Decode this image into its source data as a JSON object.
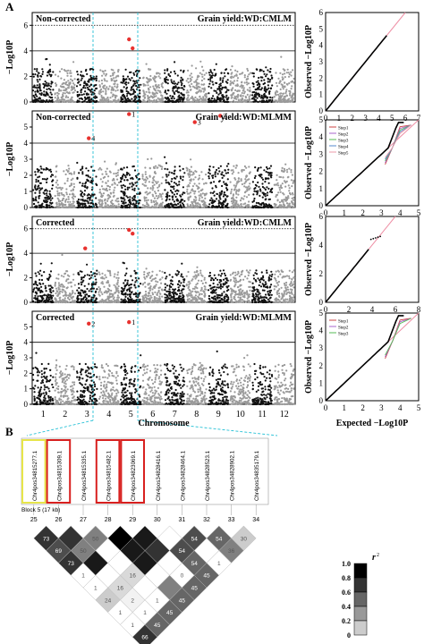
{
  "figure": {
    "panel_a": "A",
    "panel_b": "B"
  },
  "manhattan": {
    "ylabel": "−Log10P",
    "xlabel": "Chromosome",
    "chromosomes": [
      "1",
      "2",
      "3",
      "4",
      "5",
      "6",
      "7",
      "8",
      "9",
      "10",
      "11",
      "12"
    ],
    "panels": [
      {
        "label": "Non-corrected",
        "title": "Grain yield:WD:CMLM",
        "yticks": [
          0,
          2,
          4,
          6
        ],
        "threshold_dotted": 6,
        "threshold_solid": 4,
        "hits": [
          {
            "chr": "5",
            "y": 4.9,
            "label": ""
          },
          {
            "chr": "5",
            "y": 4.2,
            "label": ""
          }
        ]
      },
      {
        "label": "Non-corrected",
        "title": "Grain yield:WD:MLMM",
        "yticks": [
          0,
          1,
          2,
          3,
          4,
          5
        ],
        "threshold_dotted": 6,
        "threshold_solid": 4,
        "hits": [
          {
            "chr": "5",
            "y": 5.8,
            "label": "1"
          },
          {
            "chr": "9",
            "y": 5.7,
            "label": "2"
          },
          {
            "chr": "8",
            "y": 5.3,
            "label": "3"
          },
          {
            "chr": "3",
            "y": 4.3,
            "label": "4"
          }
        ]
      },
      {
        "label": "Corrected",
        "title": "Grain yield:WD:CMLM",
        "yticks": [
          0,
          2,
          4,
          6
        ],
        "threshold_dotted": 6,
        "threshold_solid": 4,
        "hits": [
          {
            "chr": "5",
            "y": 5.9,
            "label": ""
          },
          {
            "chr": "5",
            "y": 5.6,
            "label": ""
          },
          {
            "chr": "3",
            "y": 4.4,
            "label": ""
          }
        ]
      },
      {
        "label": "Corrected",
        "title": "Grain yield:WD:MLMM",
        "yticks": [
          0,
          1,
          2,
          3,
          4,
          5
        ],
        "threshold_dotted": 6,
        "threshold_solid": 4,
        "hits": [
          {
            "chr": "5",
            "y": 5.3,
            "label": "1"
          },
          {
            "chr": "3",
            "y": 5.2,
            "label": "2"
          }
        ]
      }
    ]
  },
  "qq": {
    "ylabel": "Observed −Log10P",
    "xlabel": "Expected −Log10P",
    "panels": [
      {
        "xticks": [
          0,
          1,
          2,
          3,
          4,
          5,
          6,
          7
        ],
        "yticks": [
          0,
          1,
          2,
          3,
          4,
          5,
          6
        ],
        "legend": []
      },
      {
        "xticks": [
          0,
          1,
          2,
          3,
          4,
          5
        ],
        "yticks": [
          0,
          1,
          2,
          3,
          4,
          5
        ],
        "legend": [
          "Step1",
          "Step2",
          "Step3",
          "Step4",
          "Step5"
        ]
      },
      {
        "xticks": [
          0,
          2,
          4,
          6,
          8
        ],
        "yticks": [
          0,
          2,
          4,
          6
        ],
        "legend": []
      },
      {
        "xticks": [
          0,
          1,
          2,
          3,
          4,
          5
        ],
        "yticks": [
          0,
          1,
          2,
          3,
          4,
          5
        ],
        "legend": [
          "Step1",
          "Step2",
          "Step3"
        ]
      }
    ]
  },
  "ld": {
    "block_label": "Block 5 (17 kb)",
    "snps": [
      "Chr4pos34815277.1",
      "Chr4pos34815309.1",
      "Chr4pos34815335.1",
      "Chr4pos34815482.1",
      "Chr4pos34823069.1",
      "Chr4pos34828416.1",
      "Chr4pos34828464.1",
      "Chr4pos34828523.1",
      "Chr4pos34828902.1",
      "Chr4pos34835179.1"
    ],
    "positions": [
      "25",
      "26",
      "27",
      "28",
      "29",
      "30",
      "31",
      "32",
      "33",
      "34"
    ],
    "highlight_yellow": [
      0
    ],
    "highlight_red": [
      1,
      3,
      4
    ],
    "legend_title": "r2",
    "legend_ticks": [
      "1.0",
      "0.8",
      "0.6",
      "0.4",
      "0.2",
      "0"
    ],
    "cells": [
      [
        "73",
        "",
        "50",
        "",
        "",
        "",
        "54",
        "54",
        "30"
      ],
      [
        "69",
        "50",
        "",
        "",
        "",
        "54",
        "",
        "36"
      ],
      [
        "73",
        "",
        "",
        "",
        "",
        "54",
        "1"
      ],
      [
        "1",
        "",
        "16",
        "",
        "0",
        "45"
      ],
      [
        "1",
        "16",
        "",
        "",
        "45"
      ],
      [
        "24",
        "2",
        "1",
        "45"
      ],
      [
        "1",
        "1",
        "45"
      ],
      [
        "1",
        "45"
      ],
      [
        "66"
      ]
    ],
    "shades": [
      [
        0.8,
        0.8,
        0.5,
        1,
        0.9,
        0,
        0.7,
        0.6,
        0.2
      ],
      [
        0.7,
        0.5,
        0,
        0.9,
        0.8,
        0.7,
        0,
        0.5
      ],
      [
        0.8,
        0.9,
        0,
        0.9,
        0,
        0.6,
        0
      ],
      [
        0,
        0,
        0.15,
        0,
        0,
        0.6
      ],
      [
        0,
        0.15,
        0,
        0.5,
        0.6
      ],
      [
        0.2,
        0.05,
        0,
        0.6
      ],
      [
        0,
        0,
        0.6
      ],
      [
        0,
        0.6
      ],
      [
        0.8
      ]
    ]
  },
  "colors": {
    "chr_dark": "#111111",
    "chr_light": "#9a9a9a",
    "hit": "#e8322f",
    "guide": "#27c1d6",
    "qq_line": "#ee8fa5",
    "yellow_box": "#e7e54a",
    "red_box": "#d8201f"
  }
}
